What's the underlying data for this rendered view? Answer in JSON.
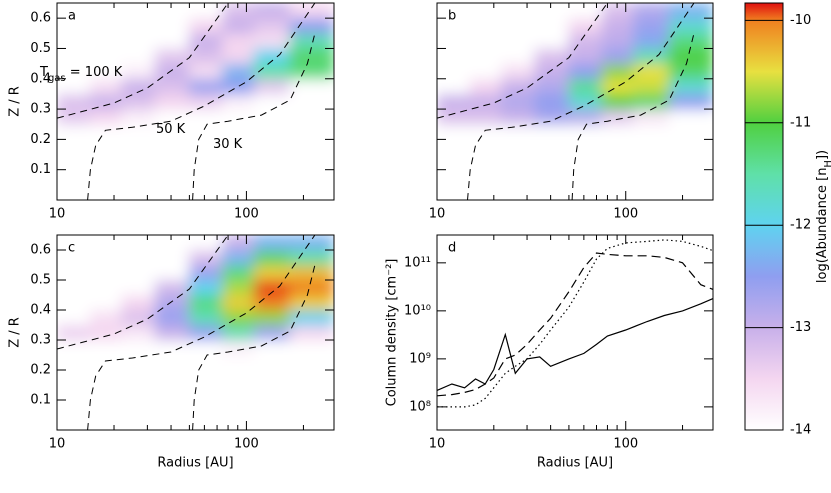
{
  "chart_data": [
    {
      "type": "heatmap",
      "panel_label": "a",
      "ylabel": "Z / R",
      "xlim": [
        10,
        290
      ],
      "xlog": true,
      "xticks": [
        10,
        100
      ],
      "xminor": [
        20,
        30,
        40,
        50,
        60,
        70,
        80,
        90,
        200
      ],
      "ylim": [
        0,
        0.65
      ],
      "yticks": [
        0.1,
        0.2,
        0.3,
        0.4,
        0.5,
        0.6
      ],
      "show_ytick_labels": true,
      "x_edges": [
        10,
        15,
        22,
        33,
        50,
        75,
        110,
        170,
        290
      ],
      "z_edges": [
        0.2,
        0.25,
        0.3,
        0.35,
        0.4,
        0.45,
        0.5,
        0.55,
        0.6,
        0.65
      ],
      "values": [
        [
          -14,
          -14,
          -14,
          -14,
          -14,
          -14,
          -14,
          -14
        ],
        [
          -13.3,
          -13.5,
          -13.8,
          -14,
          -14,
          -14,
          -14,
          -14
        ],
        [
          -13.2,
          -13.0,
          -13.2,
          -13.5,
          -13.4,
          -13.8,
          -14,
          -14
        ],
        [
          -14,
          -13.6,
          -13.0,
          -13.2,
          -12.6,
          -12.5,
          -13.3,
          -14
        ],
        [
          -14,
          -14,
          -13.8,
          -13.0,
          -13.6,
          -12.3,
          -11.5,
          -11.3
        ],
        [
          -14,
          -14,
          -14,
          -13.3,
          -13.2,
          -13.5,
          -12.0,
          -11.2
        ],
        [
          -14,
          -14,
          -14,
          -14,
          -13.0,
          -13.5,
          -13.6,
          -11.6
        ],
        [
          -14,
          -14,
          -14,
          -14,
          -13.5,
          -13.0,
          -13.3,
          -12.5
        ],
        [
          -14,
          -14,
          -14,
          -14,
          -14,
          -13.2,
          -13.0,
          -13.5
        ]
      ],
      "contours": [
        {
          "x": [
            10,
            20,
            30,
            50,
            80
          ],
          "z": [
            0.27,
            0.32,
            0.37,
            0.47,
            0.65
          ]
        },
        {
          "x": [
            14.5,
            15,
            16,
            18,
            25,
            40,
            60,
            100,
            150,
            230
          ],
          "z": [
            0,
            0.1,
            0.18,
            0.23,
            0.24,
            0.26,
            0.31,
            0.39,
            0.48,
            0.65
          ]
        },
        {
          "x": [
            52,
            53,
            56,
            62,
            80,
            120,
            170,
            210,
            230
          ],
          "z": [
            0,
            0.1,
            0.2,
            0.25,
            0.26,
            0.28,
            0.33,
            0.45,
            0.55
          ]
        }
      ],
      "annotations": [
        {
          "text": "T",
          "sub": "gas",
          "after": " = 100 K"
        },
        {
          "text": "50 K"
        },
        {
          "text": "30 K"
        }
      ]
    },
    {
      "type": "heatmap",
      "panel_label": "b",
      "xlim": [
        10,
        290
      ],
      "xlog": true,
      "xticks": [
        10,
        100
      ],
      "xminor": [
        20,
        30,
        40,
        50,
        60,
        70,
        80,
        90,
        200
      ],
      "ylim": [
        0,
        0.65
      ],
      "yticks": [
        0.1,
        0.2,
        0.3,
        0.4,
        0.5,
        0.6
      ],
      "show_ytick_labels": false,
      "x_edges": [
        10,
        15,
        22,
        33,
        50,
        75,
        110,
        170,
        290
      ],
      "z_edges": [
        0.2,
        0.25,
        0.3,
        0.35,
        0.4,
        0.45,
        0.5,
        0.55,
        0.6,
        0.65
      ],
      "values": [
        [
          -14,
          -14,
          -14,
          -14,
          -14,
          -14,
          -14,
          -14
        ],
        [
          -13.2,
          -13.2,
          -13.0,
          -12.7,
          -12.8,
          -13.3,
          -13.7,
          -14
        ],
        [
          -13.0,
          -13.0,
          -12.8,
          -12.5,
          -11.8,
          -11.0,
          -11.2,
          -12.5
        ],
        [
          -14,
          -13.5,
          -13.0,
          -12.8,
          -11.4,
          -10.5,
          -10.6,
          -11.8
        ],
        [
          -14,
          -14,
          -13.6,
          -13.0,
          -12.5,
          -10.8,
          -10.5,
          -11.2
        ],
        [
          -14,
          -14,
          -14,
          -13.2,
          -13.0,
          -12.6,
          -11.6,
          -11.0
        ],
        [
          -14,
          -14,
          -14,
          -14,
          -13.1,
          -12.9,
          -12.4,
          -11.3
        ],
        [
          -14,
          -14,
          -14,
          -14,
          -13.5,
          -13.0,
          -12.6,
          -11.8
        ],
        [
          -14,
          -14,
          -14,
          -14,
          -14,
          -13.2,
          -12.8,
          -12.3
        ]
      ],
      "contours": [
        {
          "x": [
            10,
            20,
            30,
            50,
            80
          ],
          "z": [
            0.27,
            0.32,
            0.37,
            0.47,
            0.65
          ]
        },
        {
          "x": [
            14.5,
            15,
            16,
            18,
            25,
            40,
            60,
            100,
            150,
            230
          ],
          "z": [
            0,
            0.1,
            0.18,
            0.23,
            0.24,
            0.26,
            0.31,
            0.39,
            0.48,
            0.65
          ]
        },
        {
          "x": [
            52,
            53,
            56,
            62,
            80,
            120,
            170,
            210,
            230
          ],
          "z": [
            0,
            0.1,
            0.2,
            0.25,
            0.26,
            0.28,
            0.33,
            0.45,
            0.55
          ]
        }
      ]
    },
    {
      "type": "heatmap",
      "panel_label": "c",
      "ylabel": "Z / R",
      "xlabel": "Radius [AU]",
      "xlim": [
        10,
        290
      ],
      "xlog": true,
      "xticks": [
        10,
        100
      ],
      "xminor": [
        20,
        30,
        40,
        50,
        60,
        70,
        80,
        90,
        200
      ],
      "ylim": [
        0,
        0.65
      ],
      "yticks": [
        0.1,
        0.2,
        0.3,
        0.4,
        0.5,
        0.6
      ],
      "show_ytick_labels": true,
      "x_edges": [
        10,
        15,
        22,
        33,
        50,
        75,
        110,
        170,
        290
      ],
      "z_edges": [
        0.2,
        0.25,
        0.3,
        0.35,
        0.4,
        0.45,
        0.5,
        0.55,
        0.6,
        0.65
      ],
      "values": [
        [
          -14,
          -14,
          -14,
          -14,
          -14,
          -14,
          -14,
          -14
        ],
        [
          -14,
          -14,
          -14,
          -14,
          -14,
          -13.8,
          -14,
          -14
        ],
        [
          -13.4,
          -13.5,
          -13.7,
          -13.0,
          -12.5,
          -11.6,
          -12.6,
          -13.5
        ],
        [
          -14,
          -13.6,
          -13.2,
          -12.6,
          -11.6,
          -10.8,
          -10.8,
          -12.0
        ],
        [
          -14,
          -14,
          -13.5,
          -12.8,
          -11.3,
          -10.4,
          -10.0,
          -10.4
        ],
        [
          -14,
          -14,
          -14,
          -13.1,
          -12.0,
          -10.7,
          -9.9,
          -10.0
        ],
        [
          -14,
          -14,
          -14,
          -14,
          -12.6,
          -11.3,
          -10.4,
          -10.3
        ],
        [
          -14,
          -14,
          -14,
          -14,
          -13.2,
          -12.3,
          -11.2,
          -11.5
        ],
        [
          -14,
          -14,
          -14,
          -14,
          -14,
          -13.0,
          -12.3,
          -12.3
        ]
      ],
      "contours": [
        {
          "x": [
            10,
            20,
            30,
            50,
            80
          ],
          "z": [
            0.27,
            0.32,
            0.37,
            0.47,
            0.65
          ]
        },
        {
          "x": [
            14.5,
            15,
            16,
            18,
            25,
            40,
            60,
            100,
            150,
            230
          ],
          "z": [
            0,
            0.1,
            0.18,
            0.23,
            0.24,
            0.26,
            0.31,
            0.39,
            0.48,
            0.65
          ]
        },
        {
          "x": [
            52,
            53,
            56,
            62,
            80,
            120,
            170,
            210,
            230
          ],
          "z": [
            0,
            0.1,
            0.2,
            0.25,
            0.26,
            0.28,
            0.33,
            0.45,
            0.55
          ]
        }
      ]
    },
    {
      "type": "line",
      "panel_label": "d",
      "ylabel": "Column density [cm⁻²]",
      "xlabel": "Radius [AU]",
      "xlim": [
        10,
        290
      ],
      "xlog": true,
      "xticks": [
        10,
        100
      ],
      "xminor": [
        20,
        30,
        40,
        50,
        60,
        70,
        80,
        90,
        200
      ],
      "ylim": [
        33000000,
        380000000000
      ],
      "ylog": true,
      "yticks": [
        {
          "value": 100000000,
          "label": "10⁸"
        },
        {
          "value": 1000000000,
          "label": "10⁹"
        },
        {
          "value": 10000000000,
          "label": "10¹⁰"
        },
        {
          "value": 100000000000,
          "label": "10¹¹"
        }
      ],
      "x": [
        10,
        12,
        14,
        16,
        18,
        20,
        23,
        26,
        30,
        35,
        40,
        50,
        60,
        70,
        80,
        100,
        130,
        160,
        200,
        250,
        290
      ],
      "series": [
        {
          "style": "solid",
          "color": "#000000",
          "values": [
            220000000,
            300000000,
            250000000,
            380000000,
            300000000,
            600000000,
            3200000000,
            500000000,
            1000000000,
            1100000000,
            700000000,
            1000000000,
            1300000000,
            2000000000,
            3000000000,
            4000000000,
            6000000000,
            8000000000,
            10000000000,
            14000000000,
            18000000000
          ]
        },
        {
          "style": "dashed",
          "color": "#000000",
          "values": [
            170000000,
            180000000,
            200000000,
            230000000,
            300000000,
            400000000,
            1000000000,
            1200000000,
            2000000000,
            4000000000,
            7000000000,
            25000000000,
            80000000000,
            160000000000,
            150000000000,
            140000000000,
            140000000000,
            130000000000,
            100000000000,
            35000000000,
            28000000000
          ]
        },
        {
          "style": "dotted",
          "color": "#000000",
          "values": [
            100000000,
            100000000,
            100000000,
            110000000,
            150000000,
            250000000,
            500000000,
            700000000,
            1000000000,
            2000000000,
            4000000000,
            12000000000,
            40000000000,
            120000000000,
            200000000000,
            260000000000,
            280000000000,
            300000000000,
            280000000000,
            220000000000,
            180000000000
          ]
        }
      ]
    }
  ],
  "colorbar": {
    "clim": [
      -14,
      -9.83
    ],
    "ticks": [
      -14,
      -13,
      -12,
      -11,
      -10
    ],
    "label": {
      "text": "log(Abundance [n",
      "sub": "H",
      "after": "])"
    },
    "colormap": [
      [
        -14,
        "#ffffff"
      ],
      [
        -13.5,
        "#f4d6f0"
      ],
      [
        -13,
        "#c8b0ea"
      ],
      [
        -12.5,
        "#8f9ef0"
      ],
      [
        -12,
        "#5fd3f0"
      ],
      [
        -11.5,
        "#5fe0a8"
      ],
      [
        -11,
        "#50d040"
      ],
      [
        -10.5,
        "#e8e040"
      ],
      [
        -10,
        "#f08020"
      ],
      [
        -9.83,
        "#e01010"
      ]
    ]
  }
}
